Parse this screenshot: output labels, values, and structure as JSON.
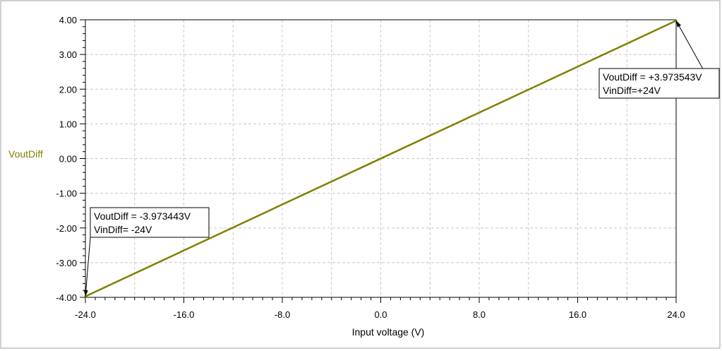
{
  "colors": {
    "series": "#808000",
    "grid": "#c8c8c8",
    "axis": "#000000",
    "background": "#ffffff"
  },
  "chart_data": {
    "type": "line",
    "xlabel": "Input voltage (V)",
    "ylabel": "VoutDiff",
    "xlim": [
      -24,
      24
    ],
    "ylim": [
      -4,
      4
    ],
    "x_ticks": [
      "-24.0",
      "-16.0",
      "-8.0",
      "0.0",
      "8.0",
      "16.0",
      "24.0"
    ],
    "y_ticks": [
      "4.00",
      "3.00",
      "2.00",
      "1.00",
      "0.00",
      "-1.00",
      "-2.00",
      "-3.00",
      "-4.00"
    ],
    "grid": true,
    "series": [
      {
        "name": "VoutDiff",
        "x": [
          -24,
          24
        ],
        "y": [
          -3.973443,
          3.973543
        ]
      }
    ],
    "annotations": [
      {
        "line1": "VoutDiff = -3.973443V",
        "line2": "VinDiff= -24V",
        "x": -24,
        "y": -3.973443
      },
      {
        "line1": "VoutDiff = +3.973543V",
        "line2": "VinDiff=+24V",
        "x": 24,
        "y": 3.973543
      }
    ]
  }
}
